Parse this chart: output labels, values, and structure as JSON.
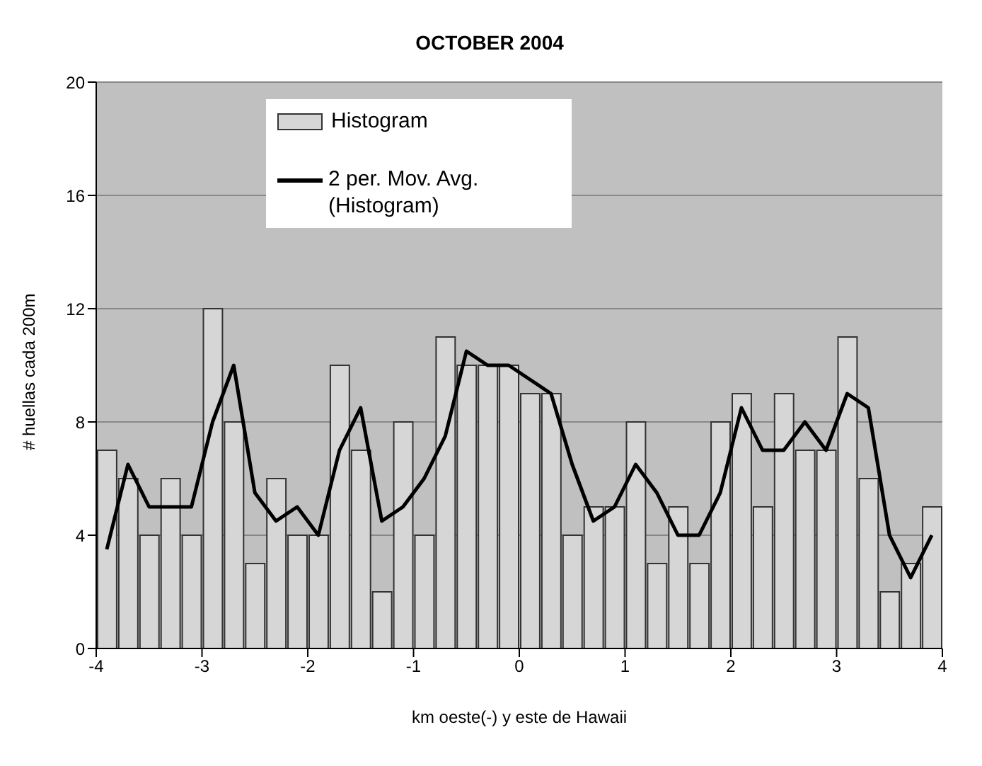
{
  "chart_data": {
    "type": "histogram",
    "title": "OCTOBER 2004",
    "xlabel": "km oeste(-) y este de Hawaii",
    "ylabel": "# huellas cada 200m",
    "bins": [
      -4,
      -3.8,
      -3.6,
      -3.4,
      -3.2,
      -3,
      -2.8,
      -2.6,
      -2.4,
      -2.2,
      -2,
      -1.8,
      -1.6,
      -1.4,
      -1.2,
      -1,
      -0.8,
      -0.6,
      -0.4,
      -0.2,
      0,
      0.2,
      0.4,
      0.6,
      0.8,
      1,
      1.2,
      1.4,
      1.6,
      1.8,
      2,
      2.2,
      2.4,
      2.6,
      2.8,
      3,
      3.2,
      3.4,
      3.6,
      3.8,
      4
    ],
    "series": [
      {
        "name": "Histogram",
        "color": "#d6d6d6",
        "values": [
          7,
          6,
          4,
          6,
          4,
          12,
          8,
          3,
          6,
          4,
          4,
          10,
          7,
          2,
          8,
          4,
          11,
          10,
          10,
          10,
          9,
          9,
          4,
          5,
          5,
          8,
          3,
          5,
          3,
          8,
          9,
          5,
          9,
          7,
          7,
          11,
          6,
          2,
          3,
          5
        ]
      },
      {
        "name": "2 per. Mov. Avg. (Histogram)",
        "type": "line",
        "color": "#000000",
        "x": [
          -3.9,
          -3.7,
          -3.5,
          -3.3,
          -3.1,
          -2.9,
          -2.7,
          -2.5,
          -2.3,
          -2.1,
          -1.9,
          -1.7,
          -1.5,
          -1.3,
          -1.1,
          -0.9,
          -0.7,
          -0.5,
          -0.3,
          -0.1,
          0.1,
          0.3,
          0.5,
          0.7,
          0.9,
          1.1,
          1.3,
          1.5,
          1.7,
          1.9,
          2.1,
          2.3,
          2.5,
          2.7,
          2.9,
          3.1,
          3.3,
          3.5,
          3.7,
          3.9
        ],
        "values": [
          3.5,
          6.5,
          5,
          5,
          5,
          8,
          10,
          5.5,
          4.5,
          5,
          4,
          7,
          8.5,
          4.5,
          5,
          6,
          7.5,
          10.5,
          10,
          10,
          9.5,
          9,
          6.5,
          4.5,
          5,
          6.5,
          5.5,
          4,
          4,
          5.5,
          8.5,
          7,
          7,
          8,
          7,
          9,
          8.5,
          4,
          2.5,
          4
        ]
      }
    ],
    "xlim": [
      -4,
      4
    ],
    "xticks": [
      -4,
      -3,
      -2,
      -1,
      0,
      1,
      2,
      3,
      4
    ],
    "ylim": [
      0,
      20
    ],
    "yticks": [
      0,
      4,
      8,
      12,
      16,
      20
    ],
    "grid": "y",
    "legend": "top left",
    "marker": "none",
    "line_style": "solid"
  }
}
